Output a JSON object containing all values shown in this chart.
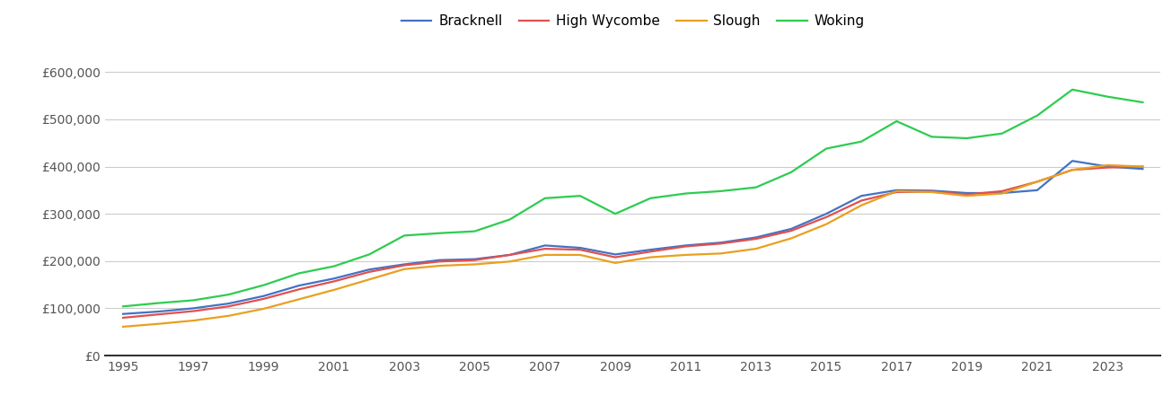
{
  "years": [
    1995,
    1996,
    1997,
    1998,
    1999,
    2000,
    2001,
    2002,
    2003,
    2004,
    2005,
    2006,
    2007,
    2008,
    2009,
    2010,
    2011,
    2012,
    2013,
    2014,
    2015,
    2016,
    2017,
    2018,
    2019,
    2020,
    2021,
    2022,
    2023,
    2024
  ],
  "Bracknell": [
    88000,
    93000,
    100000,
    110000,
    126000,
    148000,
    163000,
    182000,
    193000,
    202000,
    204000,
    213000,
    233000,
    228000,
    214000,
    224000,
    233000,
    239000,
    250000,
    268000,
    300000,
    338000,
    350000,
    349000,
    344000,
    344000,
    350000,
    412000,
    400000,
    395000
  ],
  "High Wycombe": [
    80000,
    87000,
    94000,
    104000,
    120000,
    140000,
    157000,
    177000,
    191000,
    199000,
    202000,
    213000,
    226000,
    224000,
    208000,
    220000,
    231000,
    237000,
    247000,
    264000,
    293000,
    328000,
    346000,
    347000,
    341000,
    348000,
    368000,
    393000,
    398000,
    400000
  ],
  "Slough": [
    61000,
    67000,
    74000,
    84000,
    99000,
    119000,
    139000,
    161000,
    183000,
    190000,
    193000,
    199000,
    213000,
    213000,
    196000,
    208000,
    213000,
    216000,
    226000,
    248000,
    278000,
    318000,
    348000,
    346000,
    338000,
    343000,
    368000,
    393000,
    403000,
    400000
  ],
  "Woking": [
    104000,
    111000,
    117000,
    129000,
    149000,
    174000,
    189000,
    214000,
    254000,
    259000,
    263000,
    288000,
    333000,
    338000,
    300000,
    333000,
    343000,
    348000,
    356000,
    388000,
    438000,
    453000,
    496000,
    463000,
    460000,
    470000,
    508000,
    563000,
    548000,
    536000
  ],
  "colors": {
    "Bracknell": "#4472c4",
    "High Wycombe": "#e05050",
    "Slough": "#e8a020",
    "Woking": "#2ecc50"
  },
  "ylim": [
    0,
    650000
  ],
  "yticks": [
    0,
    100000,
    200000,
    300000,
    400000,
    500000,
    600000
  ],
  "ytick_labels": [
    "£0",
    "£100,000",
    "£200,000",
    "£300,000",
    "£400,000",
    "£500,000",
    "£600,000"
  ],
  "xticks": [
    1995,
    1997,
    1999,
    2001,
    2003,
    2005,
    2007,
    2009,
    2011,
    2013,
    2015,
    2017,
    2019,
    2021,
    2023
  ],
  "xlim": [
    1994.5,
    2024.5
  ],
  "background_color": "#ffffff",
  "grid_color": "#cccccc",
  "line_width": 1.6,
  "tick_fontsize": 10,
  "legend_fontsize": 11
}
